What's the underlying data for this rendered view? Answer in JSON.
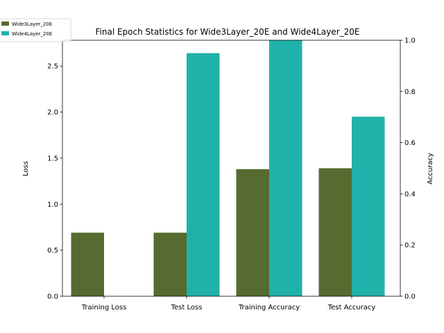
{
  "chart_data": {
    "type": "bar",
    "title": "Final Epoch Statistics for Wide3Layer_20E and Wide4Layer_20E",
    "categories": [
      "Training Loss",
      "Test Loss",
      "Training Accuracy",
      "Test Accuracy"
    ],
    "series": [
      {
        "name": "Wide3Layer_20E",
        "color": "#556b2f",
        "values": [
          0.69,
          0.69,
          1.38,
          1.39
        ]
      },
      {
        "name": "Wide4Layer_20E",
        "color": "#20b2aa",
        "values": [
          0.0,
          2.64,
          2.78,
          1.95
        ]
      }
    ],
    "ylabel_left": "Loss",
    "ylabel_right": "Accuracy",
    "ylim_left": [
      0,
      2.78
    ],
    "ylim_right": [
      0,
      1.0
    ],
    "yticks_left": [
      "0.0",
      "0.5",
      "1.0",
      "1.5",
      "2.0",
      "2.5"
    ],
    "yticks_right": [
      "0.0",
      "0.2",
      "0.4",
      "0.6",
      "0.8",
      "1.0"
    ],
    "legend_position": "top-left"
  }
}
